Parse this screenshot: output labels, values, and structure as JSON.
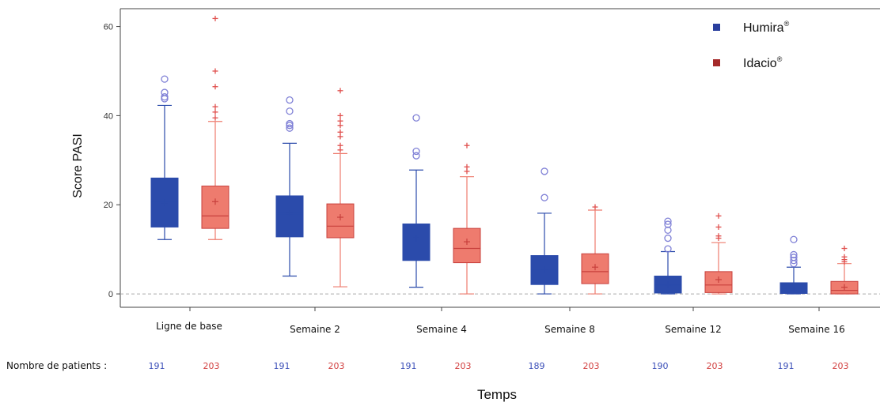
{
  "chart_data": {
    "type": "box",
    "title": "",
    "ylabel": "Score PASI",
    "xlabel": "Temps",
    "ylim": [
      -3,
      64
    ],
    "yticks": [
      0,
      20,
      40,
      60
    ],
    "grid": false,
    "legend_position": "top-right",
    "categories": [
      "Ligne de base",
      "Semaine 2",
      "Semaine 4",
      "Semaine 8",
      "Semaine 12",
      "Semaine 16"
    ],
    "count_row_label": "Nombre de patients :",
    "series": [
      {
        "name": "Humira",
        "legend_mark": "®",
        "color": "#2b4bab",
        "outlier_color": "#7f80d6",
        "counts": [
          "191",
          "191",
          "191",
          "189",
          "190",
          "191"
        ],
        "boxes": [
          {
            "q1": 15,
            "median": 20.5,
            "q3": 26,
            "mean": 20.5,
            "whisker_low": 12.2,
            "whisker_high": 42.3,
            "outliers": [
              43.8,
              44.2,
              45.2,
              48.2
            ]
          },
          {
            "q1": 12.8,
            "median": 18,
            "q3": 22,
            "mean": 18,
            "whisker_low": 4,
            "whisker_high": 33.8,
            "outliers": [
              37.2,
              37.8,
              38.2,
              41,
              43.5
            ]
          },
          {
            "q1": 7.5,
            "median": 12.5,
            "q3": 15.7,
            "mean": 12.5,
            "whisker_low": 1.5,
            "whisker_high": 27.8,
            "outliers": [
              31,
              32,
              39.5
            ]
          },
          {
            "q1": 2.1,
            "median": 5.5,
            "q3": 8.6,
            "mean": 5.5,
            "whisker_low": 0,
            "whisker_high": 18.1,
            "outliers": [
              21.6,
              27.5
            ]
          },
          {
            "q1": 0.2,
            "median": 2,
            "q3": 4,
            "mean": 2,
            "whisker_low": 0,
            "whisker_high": 9.5,
            "outliers": [
              10.1,
              12.5,
              14.3,
              15.6,
              16.3
            ]
          },
          {
            "q1": 0.1,
            "median": 1,
            "q3": 2.5,
            "mean": 1,
            "whisker_low": 0,
            "whisker_high": 6,
            "outliers": [
              6.8,
              7.5,
              8.2,
              8.8,
              12.2
            ]
          }
        ]
      },
      {
        "name": "Idacio",
        "legend_mark": "®",
        "color": "#ee7b6e",
        "line_color": "#c8403c",
        "outlier_color": "#e0504e",
        "counts": [
          "203",
          "203",
          "203",
          "203",
          "203",
          "203"
        ],
        "boxes": [
          {
            "q1": 14.7,
            "median": 17.5,
            "q3": 24.2,
            "mean": 20.7,
            "whisker_low": 12.2,
            "whisker_high": 38.7,
            "outliers": [
              39.5,
              40.8,
              42,
              46.5,
              50,
              61.8
            ]
          },
          {
            "q1": 12.6,
            "median": 15.2,
            "q3": 20.2,
            "mean": 17.2,
            "whisker_low": 1.6,
            "whisker_high": 31.5,
            "outliers": [
              32.3,
              33.3,
              35.3,
              36.3,
              37.8,
              38.8,
              40,
              45.6
            ]
          },
          {
            "q1": 7,
            "median": 10.2,
            "q3": 14.7,
            "mean": 11.7,
            "whisker_low": 0,
            "whisker_high": 26.3,
            "outliers": [
              27.5,
              28.5,
              33.3
            ]
          },
          {
            "q1": 2.3,
            "median": 5,
            "q3": 9,
            "mean": 6,
            "whisker_low": 0,
            "whisker_high": 18.8,
            "outliers": [
              19.5
            ]
          },
          {
            "q1": 0.3,
            "median": 2,
            "q3": 5,
            "mean": 3.2,
            "whisker_low": 0,
            "whisker_high": 11.5,
            "outliers": [
              12.5,
              13,
              15,
              17.5
            ]
          },
          {
            "q1": 0,
            "median": 0.8,
            "q3": 2.8,
            "mean": 1.5,
            "whisker_low": 0,
            "whisker_high": 6.8,
            "outliers": [
              7.2,
              7.7,
              8.3,
              10.2
            ]
          }
        ]
      }
    ]
  }
}
